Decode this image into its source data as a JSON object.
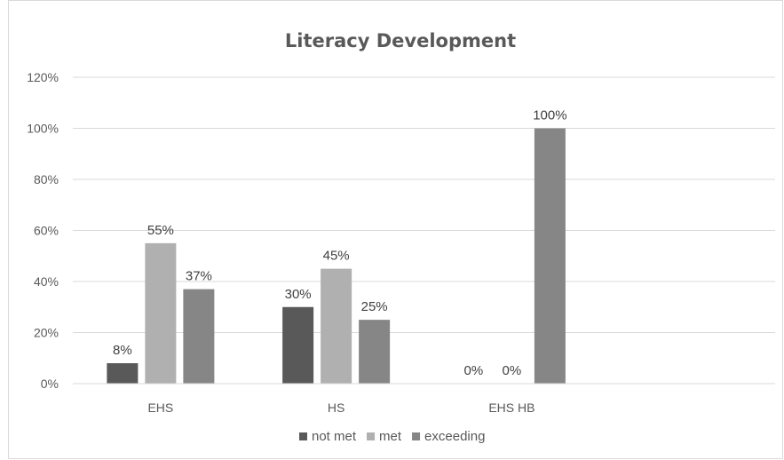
{
  "chart_data": {
    "type": "bar",
    "title": "Literacy Development",
    "xlabel": "",
    "ylabel": "",
    "categories": [
      "EHS",
      "HS",
      "EHS HB",
      ""
    ],
    "series": [
      {
        "name": "not met",
        "color": "#595959",
        "values": [
          8,
          30,
          0,
          null
        ],
        "labels": [
          "8%",
          "30%",
          "0%",
          ""
        ]
      },
      {
        "name": "met",
        "color": "#b0b0b0",
        "values": [
          55,
          45,
          0,
          null
        ],
        "labels": [
          "55%",
          "45%",
          "0%",
          ""
        ]
      },
      {
        "name": "exceeding",
        "color": "#868686",
        "values": [
          37,
          25,
          100,
          null
        ],
        "labels": [
          "37%",
          "25%",
          "100%",
          ""
        ]
      }
    ],
    "ylim": [
      0,
      120
    ],
    "yticks": [
      0,
      20,
      40,
      60,
      80,
      100,
      120
    ],
    "ytick_labels": [
      "0%",
      "20%",
      "40%",
      "60%",
      "80%",
      "100%",
      "120%"
    ],
    "grid": true,
    "legend_position": "bottom"
  }
}
